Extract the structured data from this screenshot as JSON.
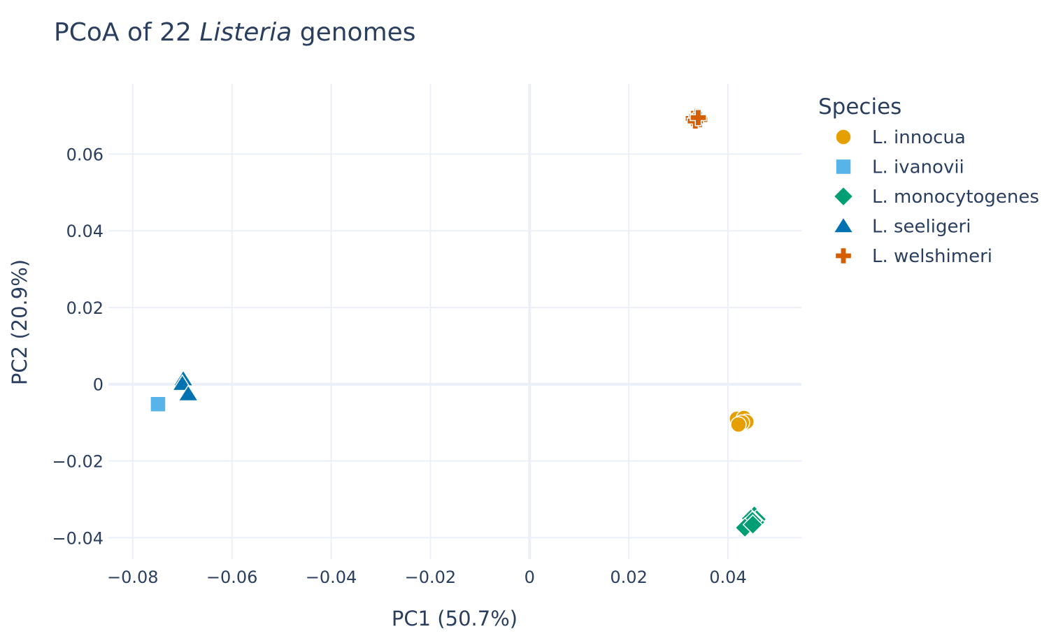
{
  "chart_data": {
    "type": "scatter",
    "title_prefix": "PCoA of 22 ",
    "title_italic": "Listeria",
    "title_suffix": " genomes",
    "xlabel": "PC1 (50.7%)",
    "ylabel": "PC2 (20.9%)",
    "xlim": [
      -0.0849,
      0.0548
    ],
    "ylim": [
      -0.0456,
      0.0783
    ],
    "x_ticks": [
      -0.08,
      -0.06,
      -0.04,
      -0.02,
      0,
      0.02,
      0.04
    ],
    "x_tick_labels": [
      "−0.08",
      "−0.06",
      "−0.04",
      "−0.02",
      "0",
      "0.02",
      "0.04"
    ],
    "y_ticks": [
      -0.04,
      -0.02,
      0,
      0.02,
      0.04,
      0.06
    ],
    "y_tick_labels": [
      "−0.04",
      "−0.02",
      "0",
      "0.02",
      "0.04",
      "0.06"
    ],
    "grid": true,
    "legend_title": "Species",
    "legend_position": "right",
    "series": [
      {
        "name": "L. innocua",
        "marker": "circle",
        "color": "#E69F00",
        "points": [
          [
            0.0418,
            -0.009
          ],
          [
            0.0432,
            -0.0088
          ],
          [
            0.0437,
            -0.0098
          ],
          [
            0.0428,
            -0.01
          ],
          [
            0.0421,
            -0.0105
          ]
        ]
      },
      {
        "name": "L. ivanovii",
        "marker": "square",
        "color": "#56B4E9",
        "points": [
          [
            -0.075,
            -0.0054
          ],
          [
            -0.0749,
            -0.0052
          ]
        ]
      },
      {
        "name": "L. monocytogenes",
        "marker": "diamond",
        "color": "#009E73",
        "points": [
          [
            0.0453,
            -0.0342
          ],
          [
            0.0458,
            -0.0352
          ],
          [
            0.0455,
            -0.036
          ],
          [
            0.0446,
            -0.035
          ],
          [
            0.0449,
            -0.0356
          ],
          [
            0.0434,
            -0.0374
          ],
          [
            0.045,
            -0.0366
          ]
        ]
      },
      {
        "name": "L. seeligeri",
        "marker": "triangle-up",
        "color": "#0072B2",
        "points": [
          [
            -0.0698,
            0.0013
          ],
          [
            -0.07,
            0.0001
          ],
          [
            -0.0688,
            -0.0026
          ]
        ]
      },
      {
        "name": "L. welshimeri",
        "marker": "cross",
        "color": "#D55E00",
        "points": [
          [
            0.033,
            0.0693
          ],
          [
            0.0337,
            0.0698
          ],
          [
            0.0343,
            0.069
          ],
          [
            0.0334,
            0.0686
          ],
          [
            0.034,
            0.0695
          ]
        ]
      }
    ]
  }
}
